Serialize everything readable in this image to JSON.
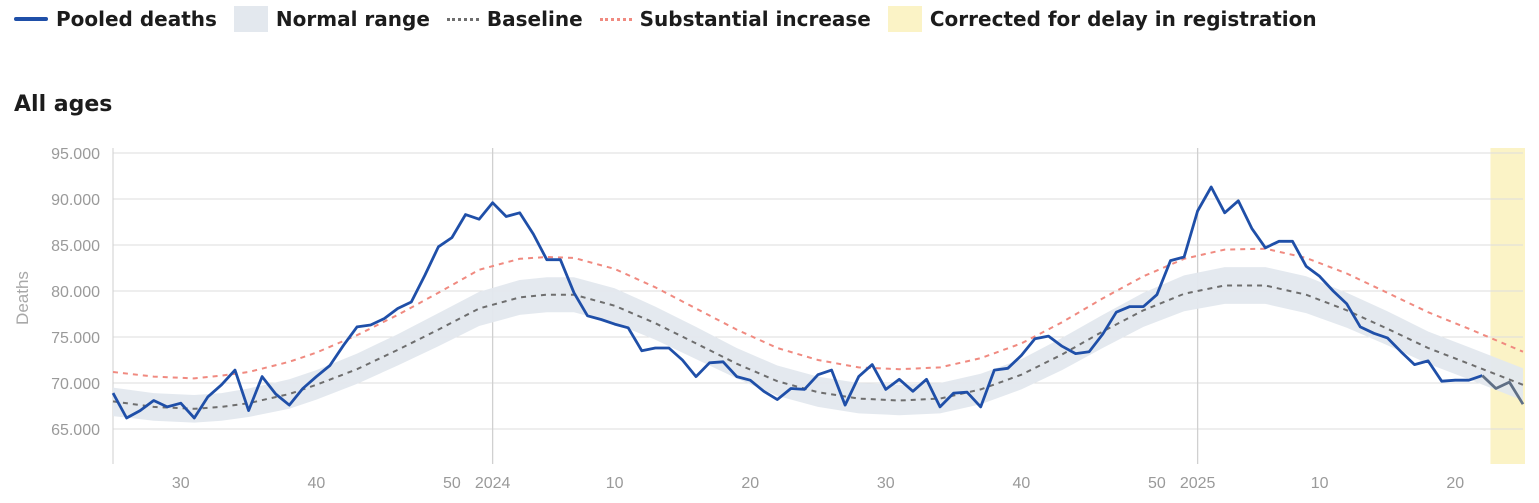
{
  "legend": {
    "items": [
      {
        "label": "Pooled deaths",
        "kind": "line",
        "color": "#1f4fa8"
      },
      {
        "label": "Normal range",
        "kind": "box",
        "color": "#e3e8ee"
      },
      {
        "label": "Baseline",
        "kind": "dash",
        "color": "#6e6e6e"
      },
      {
        "label": "Substantial increase",
        "kind": "dash",
        "color": "#f08a80"
      },
      {
        "label": "Corrected for delay in registration",
        "kind": "box",
        "color": "#fbf3c6"
      }
    ]
  },
  "panel": {
    "title": "All ages"
  },
  "chart_data": {
    "type": "line",
    "title": "All ages",
    "ylabel": "Deaths",
    "ylim": [
      60000,
      96000
    ],
    "y_ticks": [
      65000,
      70000,
      75000,
      80000,
      85000,
      90000,
      95000
    ],
    "y_tick_labels": [
      "65.000",
      "70.000",
      "75.000",
      "80.000",
      "85.000",
      "90.000",
      "95.000"
    ],
    "x_domain": [
      0,
      104
    ],
    "x_ticks": [
      {
        "x": 5,
        "label": "30"
      },
      {
        "x": 15,
        "label": "40"
      },
      {
        "x": 25,
        "label": "50"
      },
      {
        "x": 28,
        "label": "2024"
      },
      {
        "x": 37,
        "label": "10"
      },
      {
        "x": 47,
        "label": "20"
      },
      {
        "x": 57,
        "label": "30"
      },
      {
        "x": 67,
        "label": "40"
      },
      {
        "x": 77,
        "label": "50"
      },
      {
        "x": 80,
        "label": "2025"
      },
      {
        "x": 89,
        "label": "10"
      },
      {
        "x": 99,
        "label": "20"
      }
    ],
    "year_lines": [
      28,
      80
    ],
    "corrected_from": 101.6,
    "colors": {
      "deaths": "#1f4fa8",
      "normal_range": "#e3e8ee",
      "baseline": "#6e6e6e",
      "substantial": "#f08a80",
      "corrected": "#fbf3c6",
      "corrected_line": "#5f6f85",
      "grid": "#dedede",
      "year_line": "#d0d0d0"
    },
    "series": [
      {
        "name": "Pooled deaths",
        "values": [
          68900,
          66200,
          67000,
          68100,
          67400,
          67800,
          66200,
          68500,
          69800,
          71400,
          67000,
          70700,
          68800,
          67600,
          69400,
          70700,
          71900,
          74100,
          76100,
          76300,
          77000,
          78100,
          78800,
          81700,
          84800,
          85800,
          88300,
          87800,
          89600,
          88100,
          88500,
          86200,
          83400,
          83400,
          79800,
          77300,
          76900,
          76400,
          76000,
          73500,
          73800,
          73800,
          72500,
          70700,
          72200,
          72300,
          70700,
          70300,
          69100,
          68200,
          69400,
          69300,
          70900,
          71400,
          67600,
          70700,
          72000,
          69300,
          70400,
          69100,
          70400,
          67400,
          68900,
          69000,
          67400,
          71400,
          71600,
          73000,
          74800,
          75100,
          74000,
          73200,
          73400,
          75300,
          77700,
          78300,
          78300,
          79600,
          83300,
          83700,
          88700,
          91300,
          88500,
          89800,
          86800,
          84700,
          85400,
          85400,
          82700,
          81600,
          80000,
          78600,
          76100,
          75400,
          74900,
          73400,
          72000,
          72400,
          70200,
          70300,
          70300,
          70800,
          69400,
          70100,
          67700
        ]
      },
      {
        "name": "Baseline",
        "x": [
          0,
          3,
          6,
          8,
          10,
          13,
          15,
          18,
          21,
          24,
          27,
          30,
          32,
          34,
          37,
          40,
          43,
          46,
          49,
          52,
          55,
          58,
          61,
          64,
          67,
          70,
          73,
          76,
          79,
          82,
          85,
          88,
          91,
          94,
          97,
          100,
          104
        ],
        "values": [
          68000,
          67400,
          67200,
          67400,
          67800,
          68800,
          69800,
          71500,
          73600,
          75800,
          78100,
          79300,
          79600,
          79600,
          78400,
          76500,
          74300,
          72100,
          70200,
          69000,
          68300,
          68100,
          68300,
          69300,
          70900,
          73100,
          75600,
          77900,
          79700,
          80600,
          80600,
          79600,
          77900,
          75900,
          73800,
          72100,
          69800
        ]
      },
      {
        "name": "Normal range upper",
        "x": [
          0,
          3,
          6,
          8,
          10,
          13,
          15,
          18,
          21,
          24,
          27,
          30,
          32,
          34,
          37,
          40,
          43,
          46,
          49,
          52,
          55,
          58,
          61,
          64,
          67,
          70,
          73,
          76,
          79,
          82,
          85,
          88,
          91,
          94,
          97,
          100,
          104
        ],
        "values": [
          69500,
          68900,
          68700,
          68900,
          69400,
          70400,
          71400,
          73200,
          75300,
          77600,
          79900,
          81200,
          81500,
          81500,
          80300,
          78300,
          76100,
          73800,
          71900,
          70700,
          70000,
          69800,
          70000,
          71000,
          72600,
          74900,
          77400,
          79800,
          81700,
          82600,
          82600,
          81600,
          79800,
          77800,
          75600,
          73900,
          71600
        ]
      },
      {
        "name": "Normal range lower",
        "x": [
          0,
          3,
          6,
          8,
          10,
          13,
          15,
          18,
          21,
          24,
          27,
          30,
          32,
          34,
          37,
          40,
          43,
          46,
          49,
          52,
          55,
          58,
          61,
          64,
          67,
          70,
          73,
          76,
          79,
          82,
          85,
          88,
          91,
          94,
          97,
          100,
          104
        ],
        "values": [
          66400,
          65900,
          65700,
          65900,
          66300,
          67200,
          68200,
          69900,
          71900,
          74000,
          76200,
          77400,
          77700,
          77700,
          76500,
          74700,
          72600,
          70500,
          68600,
          67400,
          66700,
          66500,
          66700,
          67700,
          69300,
          71400,
          73800,
          76100,
          77800,
          78600,
          78600,
          77600,
          76000,
          74100,
          72100,
          70400,
          68100
        ]
      },
      {
        "name": "Substantial increase",
        "x": [
          0,
          3,
          6,
          8,
          10,
          13,
          15,
          18,
          21,
          24,
          27,
          30,
          32,
          34,
          37,
          40,
          43,
          46,
          49,
          52,
          55,
          58,
          61,
          64,
          67,
          70,
          73,
          76,
          79,
          82,
          85,
          88,
          91,
          94,
          97,
          100,
          104
        ],
        "values": [
          71200,
          70700,
          70500,
          70800,
          71200,
          72300,
          73300,
          75200,
          77400,
          79800,
          82300,
          83500,
          83700,
          83600,
          82400,
          80400,
          78100,
          75800,
          73800,
          72500,
          71700,
          71500,
          71700,
          72700,
          74300,
          76600,
          79200,
          81600,
          83500,
          84500,
          84600,
          83600,
          81900,
          79800,
          77700,
          75900,
          73400
        ]
      }
    ]
  }
}
